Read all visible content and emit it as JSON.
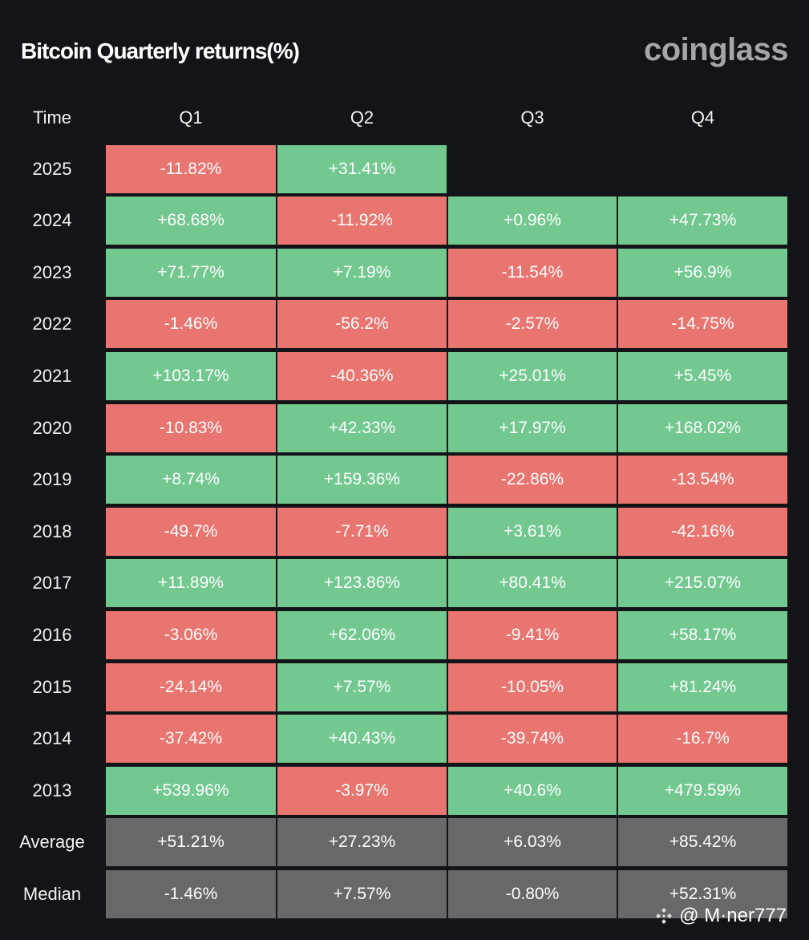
{
  "title": "Bitcoin Quarterly returns(%)",
  "brand": "coinglass",
  "watermark": "@ M·ner777",
  "colors": {
    "positive": "#72c88f",
    "negative": "#e8756f",
    "summary": "#68686a",
    "background": "#121418"
  },
  "chart_data": {
    "type": "table",
    "title": "Bitcoin Quarterly returns(%)",
    "columns": [
      "Time",
      "Q1",
      "Q2",
      "Q3",
      "Q4"
    ],
    "rows": [
      {
        "label": "2025",
        "values": [
          "-11.82%",
          "+31.41%",
          "",
          ""
        ]
      },
      {
        "label": "2024",
        "values": [
          "+68.68%",
          "-11.92%",
          "+0.96%",
          "+47.73%"
        ]
      },
      {
        "label": "2023",
        "values": [
          "+71.77%",
          "+7.19%",
          "-11.54%",
          "+56.9%"
        ]
      },
      {
        "label": "2022",
        "values": [
          "-1.46%",
          "-56.2%",
          "-2.57%",
          "-14.75%"
        ]
      },
      {
        "label": "2021",
        "values": [
          "+103.17%",
          "-40.36%",
          "+25.01%",
          "+5.45%"
        ]
      },
      {
        "label": "2020",
        "values": [
          "-10.83%",
          "+42.33%",
          "+17.97%",
          "+168.02%"
        ]
      },
      {
        "label": "2019",
        "values": [
          "+8.74%",
          "+159.36%",
          "-22.86%",
          "-13.54%"
        ]
      },
      {
        "label": "2018",
        "values": [
          "-49.7%",
          "-7.71%",
          "+3.61%",
          "-42.16%"
        ]
      },
      {
        "label": "2017",
        "values": [
          "+11.89%",
          "+123.86%",
          "+80.41%",
          "+215.07%"
        ]
      },
      {
        "label": "2016",
        "values": [
          "-3.06%",
          "+62.06%",
          "-9.41%",
          "+58.17%"
        ]
      },
      {
        "label": "2015",
        "values": [
          "-24.14%",
          "+7.57%",
          "-10.05%",
          "+81.24%"
        ]
      },
      {
        "label": "2014",
        "values": [
          "-37.42%",
          "+40.43%",
          "-39.74%",
          "-16.7%"
        ]
      },
      {
        "label": "2013",
        "values": [
          "+539.96%",
          "-3.97%",
          "+40.6%",
          "+479.59%"
        ]
      },
      {
        "label": "Average",
        "summary": true,
        "values": [
          "+51.21%",
          "+27.23%",
          "+6.03%",
          "+85.42%"
        ]
      },
      {
        "label": "Median",
        "summary": true,
        "values": [
          "-1.46%",
          "+7.57%",
          "-0.80%",
          "+52.31%"
        ]
      }
    ]
  }
}
